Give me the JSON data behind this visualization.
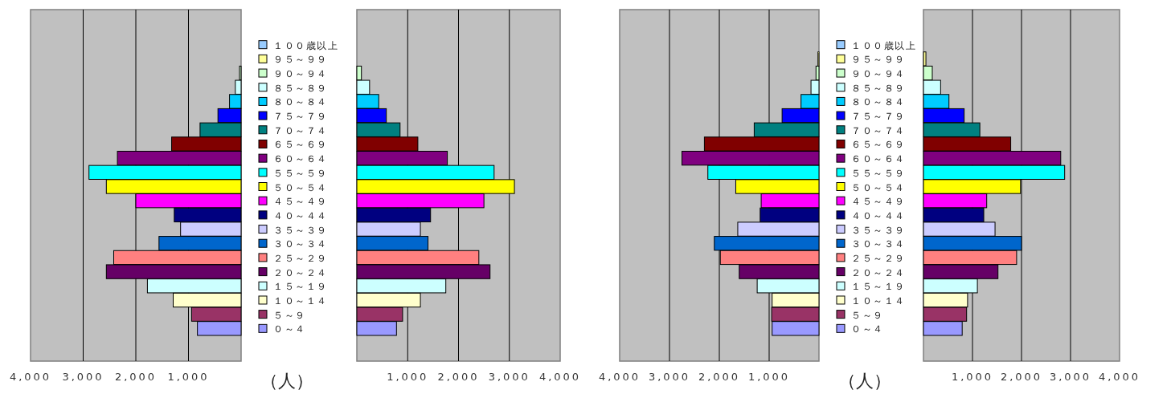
{
  "chart_data": [
    {
      "type": "bar",
      "orientation": "horizontal",
      "categories": [
        null
      ],
      "xlim": [
        4000,
        0
      ],
      "xticks": [
        {
          "value": 4000,
          "label": "4,000"
        },
        {
          "value": 3000,
          "label": "3,000"
        },
        {
          "value": 2000,
          "label": "2,000"
        },
        {
          "value": 1000,
          "label": "1,000"
        }
      ],
      "xlabel": "（人）",
      "legend": "right",
      "grid": "x",
      "tick_labels": "x",
      "series": [
        {
          "name": "１００歳以上",
          "color": "#99ccff",
          "values": [
            0
          ]
        },
        {
          "name": "９５～９９",
          "color": "#ffff99",
          "values": [
            0
          ]
        },
        {
          "name": "９０～９４",
          "color": "#ccffcc",
          "values": [
            30
          ]
        },
        {
          "name": "８５～８９",
          "color": "#ccffff",
          "values": [
            110
          ]
        },
        {
          "name": "８０～８４",
          "color": "#00ccff",
          "values": [
            220
          ]
        },
        {
          "name": "７５～７９",
          "color": "#0000ff",
          "values": [
            440
          ]
        },
        {
          "name": "７０～７４",
          "color": "#008080",
          "values": [
            780
          ]
        },
        {
          "name": "６５～６９",
          "color": "#800000",
          "values": [
            1320
          ]
        },
        {
          "name": "６０～６４",
          "color": "#800080",
          "values": [
            2350
          ]
        },
        {
          "name": "５５～５９",
          "color": "#00ffff",
          "values": [
            2890
          ]
        },
        {
          "name": "５０～５４",
          "color": "#ffff00",
          "values": [
            2560
          ]
        },
        {
          "name": "４５～４９",
          "color": "#ff00ff",
          "values": [
            2000
          ]
        },
        {
          "name": "４０～４４",
          "color": "#000080",
          "values": [
            1270
          ]
        },
        {
          "name": "３５～３９",
          "color": "#ccccff",
          "values": [
            1150
          ]
        },
        {
          "name": "３０～３４",
          "color": "#0066cc",
          "values": [
            1560
          ]
        },
        {
          "name": "２５～２９",
          "color": "#ff8080",
          "values": [
            2420
          ]
        },
        {
          "name": "２０～２４",
          "color": "#660066",
          "values": [
            2560
          ]
        },
        {
          "name": "１５～１９",
          "color": "#ccffff",
          "values": [
            1780
          ]
        },
        {
          "name": "１０～１４",
          "color": "#ffffcc",
          "values": [
            1290
          ]
        },
        {
          "name": "５～９",
          "color": "#993366",
          "values": [
            940
          ]
        },
        {
          "name": "０～４",
          "color": "#9999ff",
          "values": [
            830
          ]
        }
      ]
    },
    {
      "type": "bar",
      "orientation": "horizontal",
      "categories": [
        null
      ],
      "xlim": [
        0,
        4000
      ],
      "xticks": [
        {
          "value": 1000,
          "label": "1,000"
        },
        {
          "value": 2000,
          "label": "2,000"
        },
        {
          "value": 3000,
          "label": "3,000"
        },
        {
          "value": 4000,
          "label": "4,000"
        }
      ],
      "grid": "x",
      "tick_labels": "x",
      "series": [
        {
          "color": "#99ccff",
          "values": [
            0
          ]
        },
        {
          "color": "#ffff99",
          "values": [
            0
          ]
        },
        {
          "color": "#ccffcc",
          "values": [
            90
          ]
        },
        {
          "color": "#ccffff",
          "values": [
            250
          ]
        },
        {
          "color": "#00ccff",
          "values": [
            430
          ]
        },
        {
          "color": "#0000ff",
          "values": [
            580
          ]
        },
        {
          "color": "#008080",
          "values": [
            850
          ]
        },
        {
          "color": "#800000",
          "values": [
            1200
          ]
        },
        {
          "color": "#800080",
          "values": [
            1780
          ]
        },
        {
          "color": "#00ffff",
          "values": [
            2700
          ]
        },
        {
          "color": "#ffff00",
          "values": [
            3100
          ]
        },
        {
          "color": "#ff00ff",
          "values": [
            2500
          ]
        },
        {
          "color": "#000080",
          "values": [
            1450
          ]
        },
        {
          "color": "#ccccff",
          "values": [
            1250
          ]
        },
        {
          "color": "#0066cc",
          "values": [
            1400
          ]
        },
        {
          "color": "#ff8080",
          "values": [
            2400
          ]
        },
        {
          "color": "#660066",
          "values": [
            2620
          ]
        },
        {
          "color": "#ccffff",
          "values": [
            1750
          ]
        },
        {
          "color": "#ffffcc",
          "values": [
            1250
          ]
        },
        {
          "color": "#993366",
          "values": [
            900
          ]
        },
        {
          "color": "#9999ff",
          "values": [
            780
          ]
        }
      ]
    },
    {
      "type": "bar",
      "orientation": "horizontal",
      "categories": [
        null
      ],
      "xlim": [
        4000,
        0
      ],
      "xticks": [
        {
          "value": 4000,
          "label": "4,000"
        },
        {
          "value": 3000,
          "label": "3,000"
        },
        {
          "value": 2000,
          "label": "2,000"
        },
        {
          "value": 1000,
          "label": "1,000"
        }
      ],
      "xlabel": "（人）",
      "legend": "right",
      "grid": "x",
      "tick_labels": "x",
      "series": [
        {
          "name": "１００歳以上",
          "color": "#99ccff",
          "values": [
            0
          ]
        },
        {
          "name": "９５～９９",
          "color": "#ffff99",
          "values": [
            20
          ]
        },
        {
          "name": "９０～９４",
          "color": "#ccffcc",
          "values": [
            60
          ]
        },
        {
          "name": "８５～８９",
          "color": "#ccffff",
          "values": [
            160
          ]
        },
        {
          "name": "８０～８４",
          "color": "#00ccff",
          "values": [
            360
          ]
        },
        {
          "name": "７５～７９",
          "color": "#0000ff",
          "values": [
            740
          ]
        },
        {
          "name": "７０～７４",
          "color": "#008080",
          "values": [
            1300
          ]
        },
        {
          "name": "６５～６９",
          "color": "#800000",
          "values": [
            2300
          ]
        },
        {
          "name": "６０～６４",
          "color": "#800080",
          "values": [
            2750
          ]
        },
        {
          "name": "５５～５９",
          "color": "#00ffff",
          "values": [
            2230
          ]
        },
        {
          "name": "５０～５４",
          "color": "#ffff00",
          "values": [
            1670
          ]
        },
        {
          "name": "４５～４９",
          "color": "#ff00ff",
          "values": [
            1160
          ]
        },
        {
          "name": "４０～４４",
          "color": "#000080",
          "values": [
            1180
          ]
        },
        {
          "name": "３５～３９",
          "color": "#ccccff",
          "values": [
            1630
          ]
        },
        {
          "name": "３０～３４",
          "color": "#0066cc",
          "values": [
            2100
          ]
        },
        {
          "name": "２５～２９",
          "color": "#ff8080",
          "values": [
            1980
          ]
        },
        {
          "name": "２０～２４",
          "color": "#660066",
          "values": [
            1600
          ]
        },
        {
          "name": "１５～１９",
          "color": "#ccffff",
          "values": [
            1240
          ]
        },
        {
          "name": "１０～１４",
          "color": "#ffffcc",
          "values": [
            940
          ]
        },
        {
          "name": "５～９",
          "color": "#993366",
          "values": [
            950
          ]
        },
        {
          "name": "０～４",
          "color": "#9999ff",
          "values": [
            940
          ]
        }
      ]
    },
    {
      "type": "bar",
      "orientation": "horizontal",
      "categories": [
        null
      ],
      "xlim": [
        0,
        4000
      ],
      "xticks": [
        {
          "value": 1000,
          "label": "1,000"
        },
        {
          "value": 2000,
          "label": "2,000"
        },
        {
          "value": 3000,
          "label": "3,000"
        },
        {
          "value": 4000,
          "label": "4,000"
        }
      ],
      "grid": "x",
      "tick_labels": "x",
      "series": [
        {
          "color": "#99ccff",
          "values": [
            0
          ]
        },
        {
          "color": "#ffff99",
          "values": [
            50
          ]
        },
        {
          "color": "#ccffcc",
          "values": [
            180
          ]
        },
        {
          "color": "#ccffff",
          "values": [
            350
          ]
        },
        {
          "color": "#00ccff",
          "values": [
            520
          ]
        },
        {
          "color": "#0000ff",
          "values": [
            830
          ]
        },
        {
          "color": "#008080",
          "values": [
            1150
          ]
        },
        {
          "color": "#800000",
          "values": [
            1780
          ]
        },
        {
          "color": "#800080",
          "values": [
            2800
          ]
        },
        {
          "color": "#00ffff",
          "values": [
            2880
          ]
        },
        {
          "color": "#ffff00",
          "values": [
            1980
          ]
        },
        {
          "color": "#ff00ff",
          "values": [
            1290
          ]
        },
        {
          "color": "#000080",
          "values": [
            1230
          ]
        },
        {
          "color": "#ccccff",
          "values": [
            1460
          ]
        },
        {
          "color": "#0066cc",
          "values": [
            2000
          ]
        },
        {
          "color": "#ff8080",
          "values": [
            1900
          ]
        },
        {
          "color": "#660066",
          "values": [
            1520
          ]
        },
        {
          "color": "#ccffff",
          "values": [
            1100
          ]
        },
        {
          "color": "#ffffcc",
          "values": [
            900
          ]
        },
        {
          "color": "#993366",
          "values": [
            880
          ]
        },
        {
          "color": "#9999ff",
          "values": [
            790
          ]
        }
      ]
    }
  ]
}
